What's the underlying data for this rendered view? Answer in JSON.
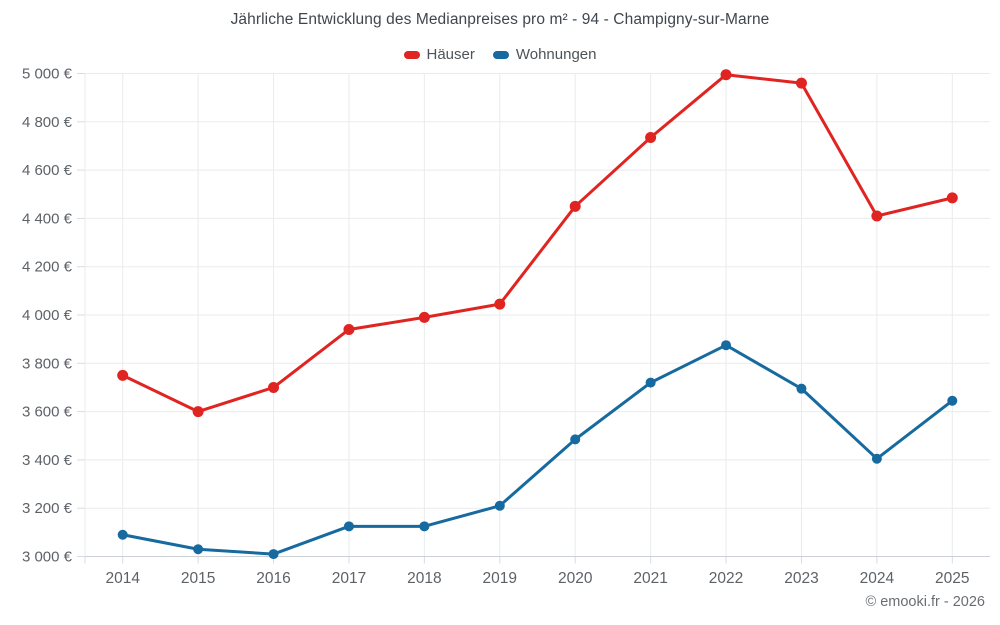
{
  "chart": {
    "title": "Jährliche Entwicklung des Medianpreises pro m² - 94 - Champigny-sur-Marne",
    "watermark": "© emooki.fr - 2026"
  },
  "colors": {
    "haeuser_red": "#e02421",
    "wohnungen_blue": "#166a9f",
    "grid_line": "#e9ebed",
    "axis_line": "#ccd0d4",
    "tick_line": "#d9dbde",
    "axis_text": "#5d6267",
    "title_text": "#3f464e"
  },
  "chart_data": {
    "type": "line",
    "categories": [
      "2014",
      "2015",
      "2016",
      "2017",
      "2018",
      "2019",
      "2020",
      "2021",
      "2022",
      "2023",
      "2024",
      "2025"
    ],
    "series": [
      {
        "name": "Häuser",
        "color": "#e02421",
        "marker_radius": 5.5,
        "values": [
          3750,
          3600,
          3700,
          3940,
          3990,
          4045,
          4450,
          4735,
          4995,
          4960,
          4410,
          4485
        ]
      },
      {
        "name": "Wohnungen",
        "color": "#166a9f",
        "marker_radius": 5,
        "values": [
          3090,
          3030,
          3010,
          3125,
          3125,
          3210,
          3485,
          3720,
          3875,
          3695,
          3405,
          3645
        ]
      }
    ],
    "title": "Jährliche Entwicklung des Medianpreises pro m² - 94 - Champigny-sur-Marne",
    "xlabel": "",
    "ylabel": "",
    "ylim": [
      3000,
      5000
    ],
    "ytick_step": 200,
    "ytick_suffix": " €",
    "grid": true,
    "legend_position": "top",
    "legend": [
      "Häuser",
      "Wohnungen"
    ]
  }
}
